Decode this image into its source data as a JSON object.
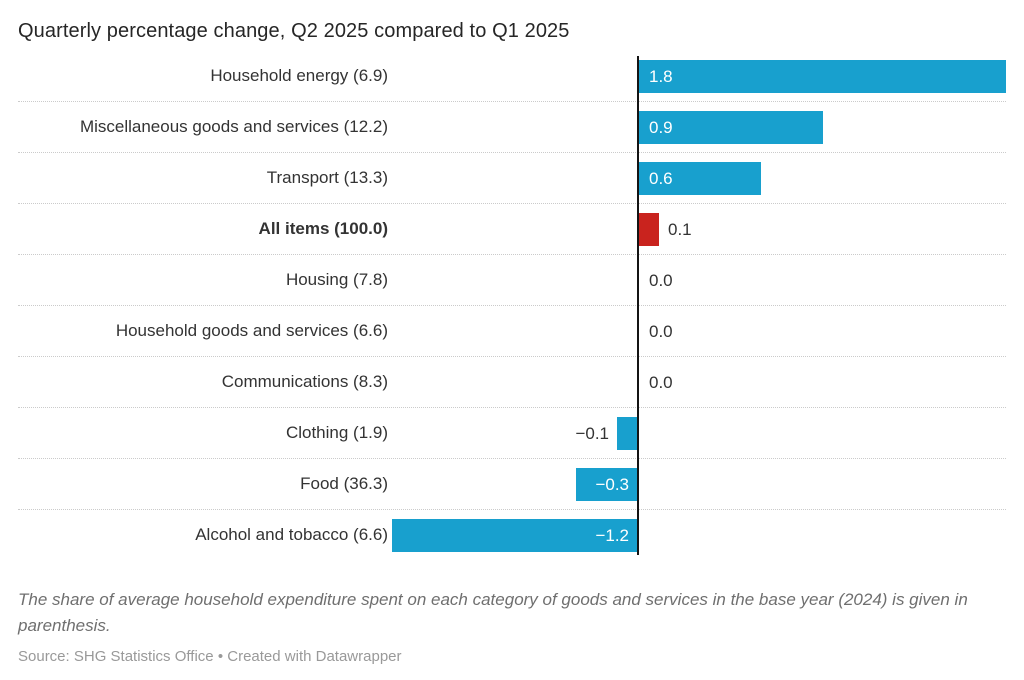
{
  "title": "Quarterly percentage change, Q2 2025 compared to Q1 2025",
  "chart_data": {
    "type": "bar",
    "orientation": "horizontal",
    "title": "Quarterly percentage change, Q2 2025 compared to Q1 2025",
    "xlim": [
      -1.2,
      1.8
    ],
    "zero_axis": true,
    "grid": "dotted horizontal row separators",
    "legend": "none",
    "categories": [
      "Household energy (6.9)",
      "Miscellaneous goods and services (12.2)",
      "Transport (13.3)",
      "All items (100.0)",
      "Housing (7.8)",
      "Household goods and services (6.6)",
      "Communications (8.3)",
      "Clothing (1.9)",
      "Food (36.3)",
      "Alcohol and tobacco (6.6)"
    ],
    "values": [
      1.8,
      0.9,
      0.6,
      0.1,
      0.0,
      0.0,
      0.0,
      -0.1,
      -0.3,
      -1.2
    ],
    "rows": [
      {
        "label": "Household energy (6.9)",
        "value": 1.8,
        "display": "1.8",
        "color": "blue",
        "emphasis": false
      },
      {
        "label": "Miscellaneous goods and services (12.2)",
        "value": 0.9,
        "display": "0.9",
        "color": "blue",
        "emphasis": false
      },
      {
        "label": "Transport (13.3)",
        "value": 0.6,
        "display": "0.6",
        "color": "blue",
        "emphasis": false
      },
      {
        "label": "All items (100.0)",
        "value": 0.1,
        "display": "0.1",
        "color": "red",
        "emphasis": true
      },
      {
        "label": "Housing (7.8)",
        "value": 0.0,
        "display": "0.0",
        "color": "blue",
        "emphasis": false
      },
      {
        "label": "Household goods and services (6.6)",
        "value": 0.0,
        "display": "0.0",
        "color": "blue",
        "emphasis": false
      },
      {
        "label": "Communications (8.3)",
        "value": 0.0,
        "display": "0.0",
        "color": "blue",
        "emphasis": false
      },
      {
        "label": "Clothing (1.9)",
        "value": -0.1,
        "display": "−0.1",
        "color": "blue",
        "emphasis": false
      },
      {
        "label": "Food (36.3)",
        "value": -0.3,
        "display": "−0.3",
        "color": "blue",
        "emphasis": false
      },
      {
        "label": "Alcohol and tobacco (6.6)",
        "value": -1.2,
        "display": "−1.2",
        "color": "blue",
        "emphasis": false
      }
    ]
  },
  "footnote": "The share of average household expenditure spent on each category of goods and services in the base year (2024) is given in parenthesis.",
  "source": {
    "prefix": "Source:",
    "name": "SHG Statistics Office",
    "separator": "•",
    "credit": "Created with Datawrapper"
  },
  "colors": {
    "bar_positive_blue": "#18a0ce",
    "bar_all_items_red": "#c9231e",
    "axis_line": "#141414",
    "row_separator": "#cbcbcb",
    "label_text": "#333333",
    "value_inside_text": "#ffffff",
    "title_text": "#262626",
    "footnote_text": "#6f6f6f",
    "source_text": "#999999"
  }
}
